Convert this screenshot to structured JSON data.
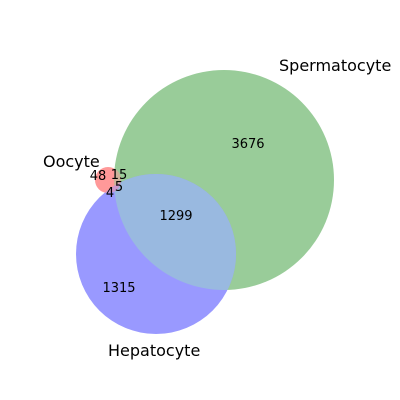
{
  "diagram": {
    "type": "venn3",
    "sets": [
      {
        "key": "oocyte",
        "name": "Oocyte",
        "color": "#ff9999"
      },
      {
        "key": "spermatocyte",
        "name": "Spermatocyte",
        "color": "#99cc99"
      },
      {
        "key": "hepatocyte",
        "name": "Hepatocyte",
        "color": "#9999ff"
      }
    ],
    "overlap_colors": {
      "spermatocyte_hepatocyte": "#99b9e0",
      "oocyte_spermatocyte": "#ccb299",
      "oocyte_hepatocyte": "#cc99cc"
    },
    "regions": {
      "oocyte_only": "48",
      "oocyte_spermatocyte": "15",
      "oocyte_hepatocyte": "4",
      "all_three": "5",
      "spermatocyte_only": "3676",
      "spermatocyte_hepatocyte": "1299",
      "hepatocyte_only": "1315"
    }
  }
}
